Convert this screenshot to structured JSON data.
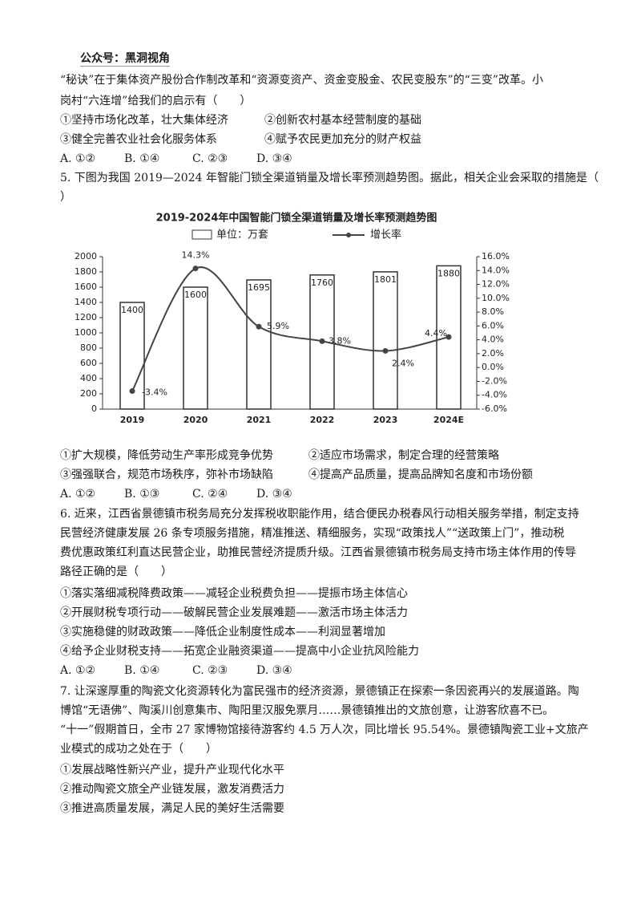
{
  "header": {
    "label": "公众号：黑洞视角"
  },
  "q4": {
    "stem": [
      "“秘诀”在于集体资产股份合作制改革和“资源变资产、资金变股金、农民变股东”的“三变”改革。小",
      "岗村“六连增”给我们的启示有（　　）"
    ],
    "options": [
      "①坚持市场化改革，壮大集体经济",
      "②创新农村基本经营制度的基础",
      "③健全完善农业社会化服务体系",
      "④赋予农民更加充分的财产权益"
    ],
    "choices": [
      "A. ①②",
      "B. ①④",
      "C. ②③",
      "D. ③④"
    ]
  },
  "q5": {
    "stem": [
      "5. 下图为我国 2019—2024 年智能门锁全渠道销量及增长率预测趋势图。据此，相关企业会采取的措施是（",
      "）"
    ],
    "options": [
      "①扩大规模，降低劳动生产率形成竞争优势",
      "②适应市场需求，制定合理的经营策略",
      "③强强联合，规范市场秩序，弥补市场缺陷",
      "④提高产品质量，提高品牌知名度和市场份额"
    ],
    "choices": [
      "A. ①②",
      "B. ①③",
      "C. ②④",
      "D. ③④"
    ]
  },
  "chart_data": {
    "type": "bar-line",
    "title": "2019-2024年中国智能门锁全渠道销量及增长率预测趋势图",
    "categories": [
      "2019",
      "2020",
      "2021",
      "2022",
      "2023",
      "2024E"
    ],
    "series": [
      {
        "name": "单位：万套",
        "type": "bar",
        "color": "#ffffff",
        "values": [
          1400,
          1600,
          1695,
          1760,
          1801,
          1880
        ]
      },
      {
        "name": "增长率",
        "type": "line",
        "axis": "y2",
        "color": "#444444",
        "values": [
          -3.4,
          14.3,
          5.9,
          3.8,
          2.4,
          4.4
        ],
        "value_labels": [
          "-3.4%",
          "14.3%",
          "5.9%",
          "3.8%",
          "2.4%",
          "4.4%"
        ]
      }
    ],
    "ylim": [
      0,
      2000
    ],
    "yticks": [
      0,
      200,
      400,
      600,
      800,
      1000,
      1200,
      1400,
      1600,
      1800,
      2000
    ],
    "y2lim": [
      -6,
      16
    ],
    "y2ticks": [
      {
        "value": -6,
        "label": "-6.0%"
      },
      {
        "value": -4,
        "label": "-4.0%"
      },
      {
        "value": -2,
        "label": "-2.0%"
      },
      {
        "value": 0,
        "label": "0.0%"
      },
      {
        "value": 2,
        "label": "2.0%"
      },
      {
        "value": 4,
        "label": "4.0%"
      },
      {
        "value": 6,
        "label": "6.0%"
      },
      {
        "value": 8,
        "label": "8.0%"
      },
      {
        "value": 10,
        "label": "10.0%"
      },
      {
        "value": 12,
        "label": "12.0%"
      },
      {
        "value": 14,
        "label": "14.0%"
      },
      {
        "value": 16,
        "label": "16.0%"
      }
    ],
    "grid": false,
    "legend": "top"
  },
  "q6": {
    "stem": [
      "6. 近来，江西省景德镇市税务局充分发挥税收职能作用，结合便民办税春风行动相关服务举措，制定支持",
      "民营经济健康发展 26 条专项服务措施，精准推送、精细服务，实现“政策找人”“送政策上门”，推动税",
      "费优惠政策红利直达民营企业，助推民营经济提质升级。江西省景德镇市税务局支持市场主体作用的传导",
      "路径正确的是（　　）"
    ],
    "options": [
      "①落实落细减税降费政策——减轻企业税费负担——提振市场主体信心",
      "②开展财税专项行动——破解民营企业发展难题——激活市场主体活力",
      "③实施稳健的财政政策——降低企业制度性成本——利润显著增加",
      "④给予企业财税支持——拓宽企业融资渠道——提高中小企业抗风险能力"
    ],
    "choices": [
      "A. ①②",
      "B. ①④",
      "C. ②③",
      "D. ③④"
    ]
  },
  "q7": {
    "stem": [
      "7. 让深邃厚重的陶瓷文化资源转化为富民强市的经济资源，景德镇正在探索一条因瓷再兴的发展道路。陶",
      "博馆“无语佛”、陶溪川创意集市、陶阳里汉服免票月……景德镇推出的文旅创意，让游客欣喜不已。",
      "“十一”假期首日，全市 27 家博物馆接待游客约 4.5 万人次，同比增长 95.54%。景德镇陶瓷工业+文旅产",
      "业模式的成功之处在于（　　）"
    ],
    "options": [
      "①发展战略性新兴产业，提升产业现代化水平",
      "②推动陶瓷文旅全产业链发展，激发消费活力",
      "③推进高质量发展，满足人民的美好生活需要"
    ]
  }
}
